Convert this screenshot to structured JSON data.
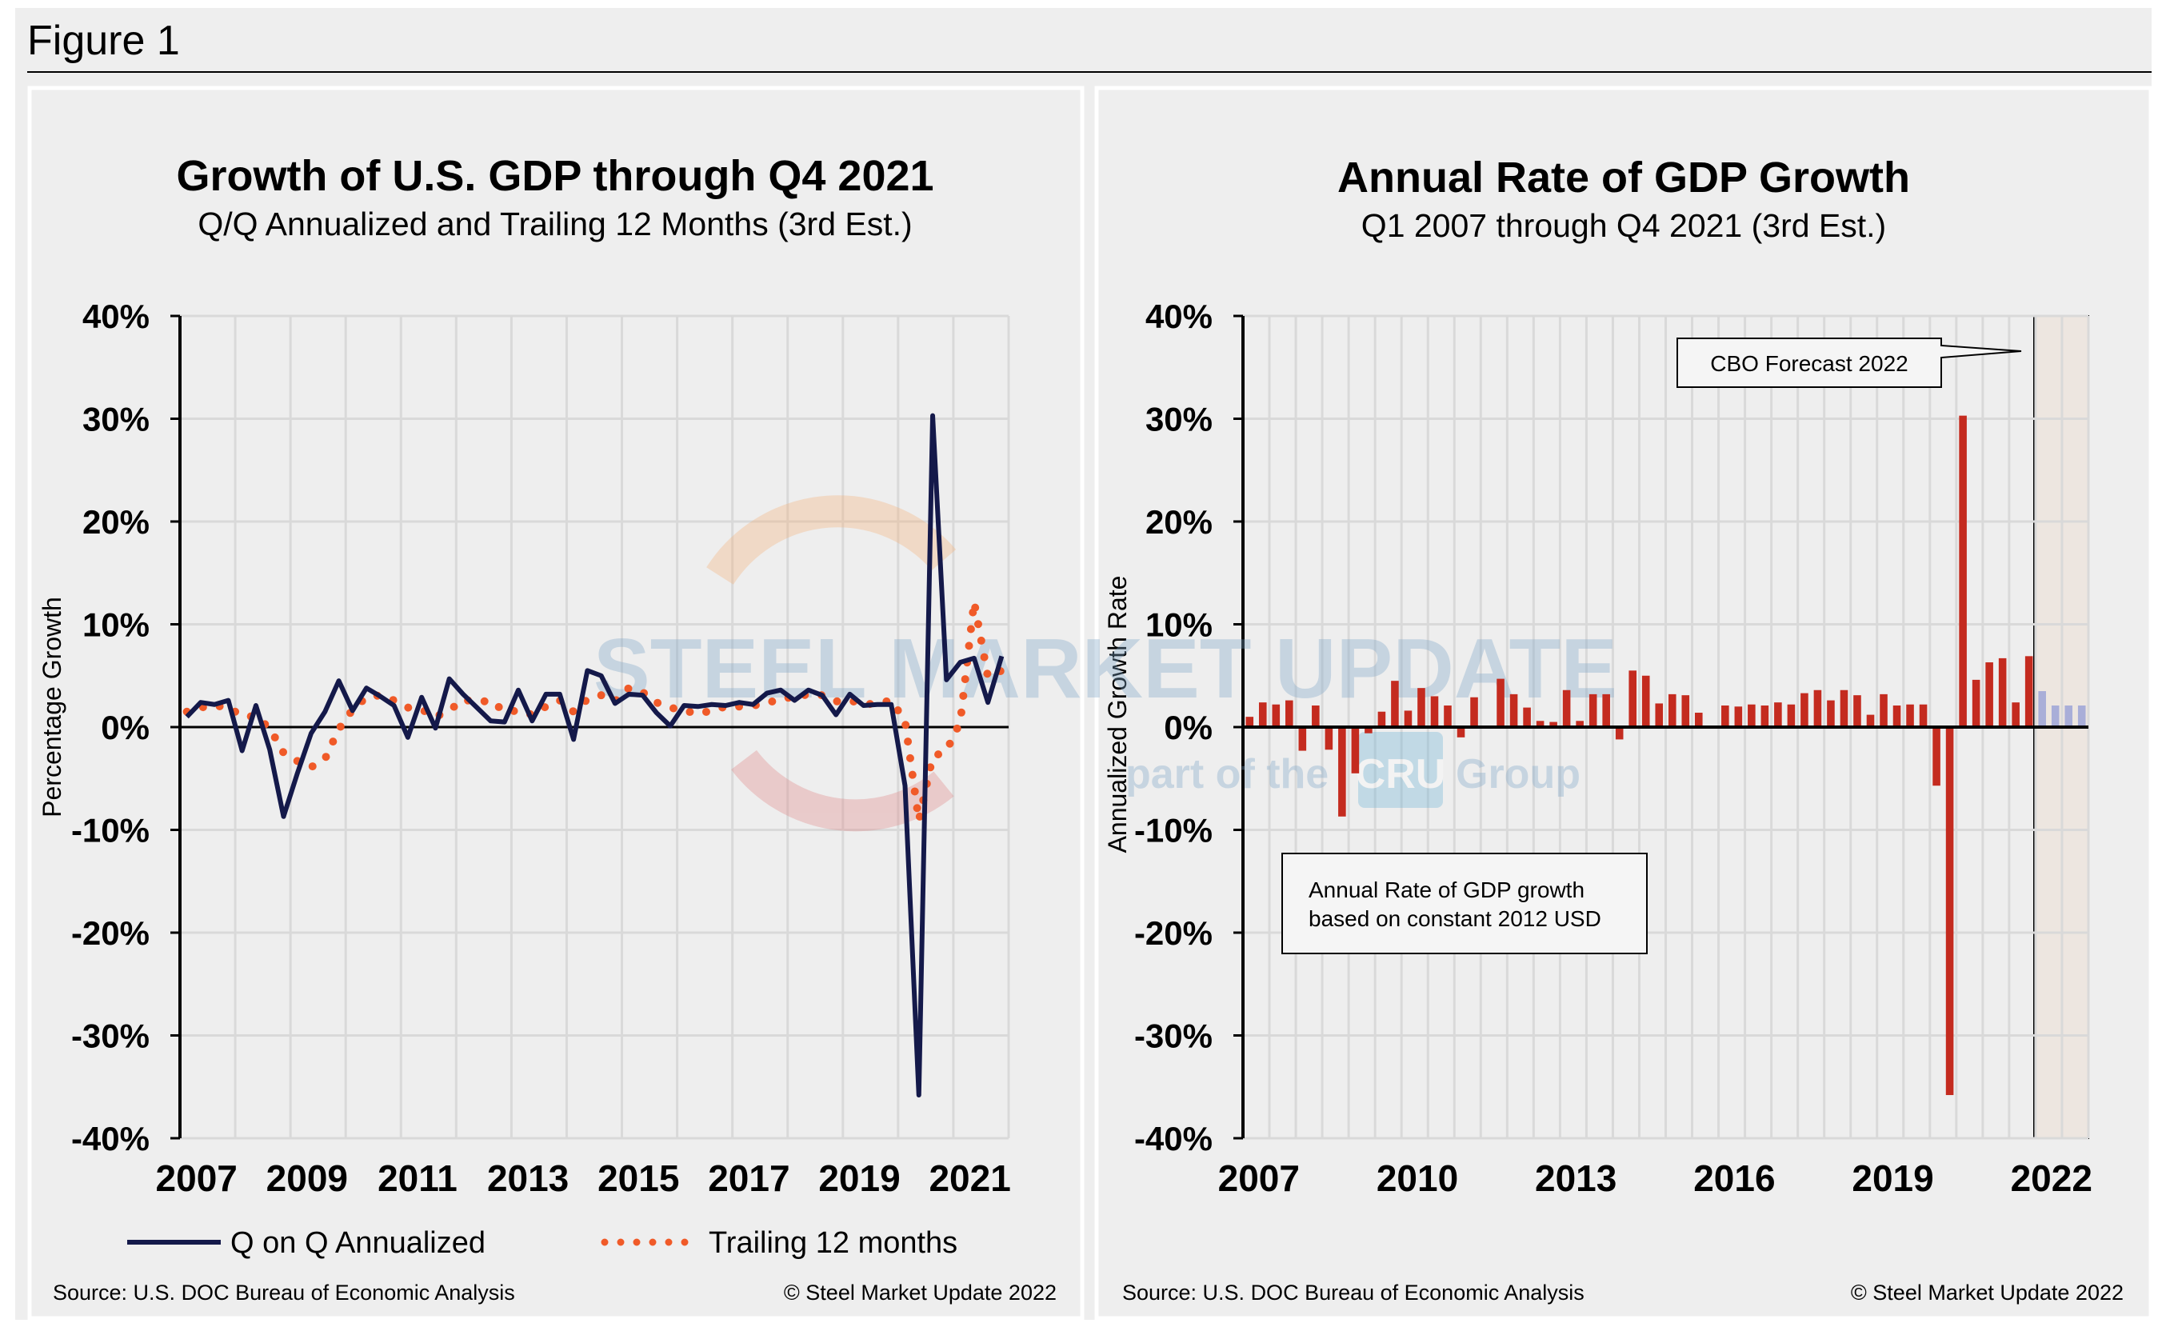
{
  "figure_label": "Figure 1",
  "watermark": {
    "brand": "STEEL MARKET UPDATE",
    "tagline_pre": "part of the",
    "tagline_logo": "CRU",
    "tagline_post": "Group"
  },
  "colors": {
    "background": "#eeeeee",
    "qoq_line": "#14194a",
    "trailing_dots": "#f05a28",
    "bar": "#c42b1f",
    "forecast_bar": "#a9aed8",
    "forecast_band": "#ede6e0",
    "grid": "#d9d9d9"
  },
  "chart_data": [
    {
      "type": "line",
      "title": "Growth of U.S. GDP through Q4 2021",
      "subtitle": "Q/Q Annualized and Trailing 12 Months (3rd Est.)",
      "xlabel": "",
      "ylabel": "Percentage Growth",
      "ylim": [
        -40,
        40
      ],
      "yticks": [
        "40%",
        "30%",
        "20%",
        "10%",
        "0%",
        "-10%",
        "-20%",
        "-30%",
        "-40%"
      ],
      "xticks": [
        "2007",
        "2009",
        "2011",
        "2013",
        "2015",
        "2017",
        "2019",
        "2021"
      ],
      "x_start": "2007 Q1",
      "x_end": "2021 Q4",
      "grid": true,
      "legend": "bottom",
      "series": [
        {
          "name": "Q on Q Annualized",
          "style": "solid",
          "values": [
            1.0,
            2.4,
            2.2,
            2.6,
            -2.3,
            2.1,
            -2.2,
            -8.7,
            -4.5,
            -0.6,
            1.5,
            4.5,
            1.6,
            3.8,
            3.0,
            2.1,
            -1.0,
            2.9,
            -0.1,
            4.7,
            3.2,
            1.9,
            0.6,
            0.5,
            3.6,
            0.6,
            3.2,
            3.2,
            -1.2,
            5.5,
            5.0,
            2.3,
            3.2,
            3.1,
            1.4,
            0.1,
            2.1,
            2.0,
            2.2,
            2.1,
            2.4,
            2.2,
            3.3,
            3.6,
            2.6,
            3.6,
            3.1,
            1.2,
            3.2,
            2.1,
            2.2,
            2.2,
            -5.7,
            -35.8,
            30.3,
            4.6,
            6.3,
            6.7,
            2.4,
            6.9
          ]
        },
        {
          "name": "Trailing 12 months",
          "style": "dotted",
          "values": [
            1.5,
            1.9,
            2.1,
            1.9,
            1.1,
            1.0,
            -0.1,
            -2.5,
            -3.3,
            -3.9,
            -3.1,
            -0.2,
            1.7,
            2.9,
            3.1,
            2.6,
            1.9,
            1.7,
            1.0,
            1.6,
            2.7,
            2.4,
            2.6,
            1.5,
            1.6,
            1.2,
            2.0,
            2.6,
            1.5,
            2.7,
            3.1,
            2.5,
            3.8,
            3.4,
            2.4,
            1.9,
            1.6,
            1.3,
            1.6,
            2.0,
            2.0,
            2.1,
            2.3,
            2.8,
            2.9,
            3.2,
            3.1,
            2.5,
            2.6,
            2.2,
            2.3,
            2.6,
            0.6,
            -9.1,
            -2.9,
            -2.3,
            0.5,
            12.2,
            4.9,
            5.5
          ]
        }
      ],
      "source": "Source: U.S. DOC Bureau of Economic Analysis",
      "copyright": "© Steel Market Update 2022"
    },
    {
      "type": "bar",
      "title": "Annual Rate of GDP Growth",
      "subtitle": "Q1 2007 through Q4 2021 (3rd Est.)",
      "xlabel": "",
      "ylabel": "Annualized Growth Rate",
      "ylim": [
        -40,
        40
      ],
      "yticks": [
        "40%",
        "30%",
        "20%",
        "10%",
        "0%",
        "-10%",
        "-20%",
        "-30%",
        "-40%"
      ],
      "xticks": [
        "2007",
        "2010",
        "2013",
        "2016",
        "2019",
        "2022"
      ],
      "x_start": "2007 Q1",
      "x_end": "2022 Q4",
      "grid": true,
      "values": [
        1.0,
        2.4,
        2.2,
        2.6,
        -2.3,
        2.1,
        -2.2,
        -8.7,
        -4.5,
        -0.6,
        1.5,
        4.5,
        1.6,
        3.8,
        3.0,
        2.1,
        -1.0,
        2.9,
        -0.1,
        4.7,
        3.2,
        1.9,
        0.6,
        0.5,
        3.6,
        0.6,
        3.2,
        3.2,
        -1.2,
        5.5,
        5.0,
        2.3,
        3.2,
        3.1,
        1.4,
        0.1,
        2.1,
        2.0,
        2.2,
        2.1,
        2.4,
        2.2,
        3.3,
        3.6,
        2.6,
        3.6,
        3.1,
        1.2,
        3.2,
        2.1,
        2.2,
        2.2,
        -5.7,
        -35.8,
        30.3,
        4.6,
        6.3,
        6.7,
        2.4,
        6.9
      ],
      "forecast_values": [
        3.5,
        2.1,
        2.1,
        2.1
      ],
      "annotations": {
        "forecast_callout": "CBO Forecast 2022",
        "note_line1": "Annual Rate of GDP growth",
        "note_line2": "based on constant 2012 USD"
      },
      "source": "Source: U.S. DOC Bureau of Economic Analysis",
      "copyright": "© Steel Market Update 2022"
    }
  ]
}
